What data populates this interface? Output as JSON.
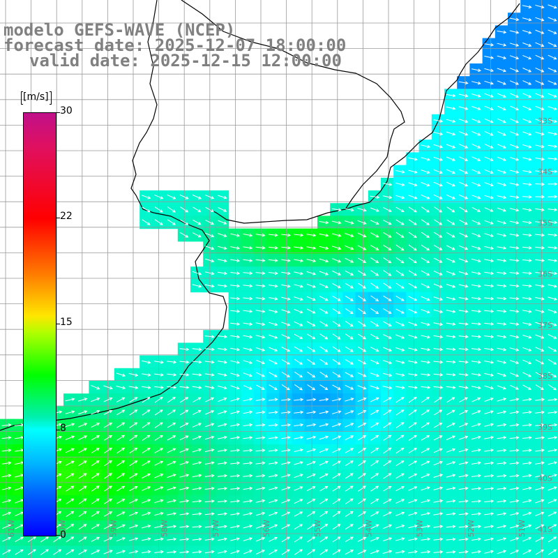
{
  "header": {
    "line1": "modelo GEFS-WAVE (NCEP)",
    "line2": "forecast date: 2025-12-07 18:00:00",
    "line3": "valid date: 2025-12-15 12:00:00"
  },
  "colorbar": {
    "unit": "[m/s]",
    "ticks": [
      "30",
      "22",
      "15",
      "8",
      "0"
    ],
    "colors": [
      "#0000ff",
      "#00b4ff",
      "#00ffff",
      "#00ff00",
      "#ffe600",
      "#ff7a00",
      "#ff0000",
      "#c0108a"
    ]
  },
  "lat_labels": [
    "33S",
    "34S",
    "35S",
    "36S",
    "37S",
    "38S",
    "39S",
    "40S",
    "41S"
  ],
  "lon_labels": [
    "61W",
    "60W",
    "59W",
    "58W",
    "57W",
    "56W",
    "55W",
    "54W",
    "53W",
    "52W",
    "51W"
  ]
}
